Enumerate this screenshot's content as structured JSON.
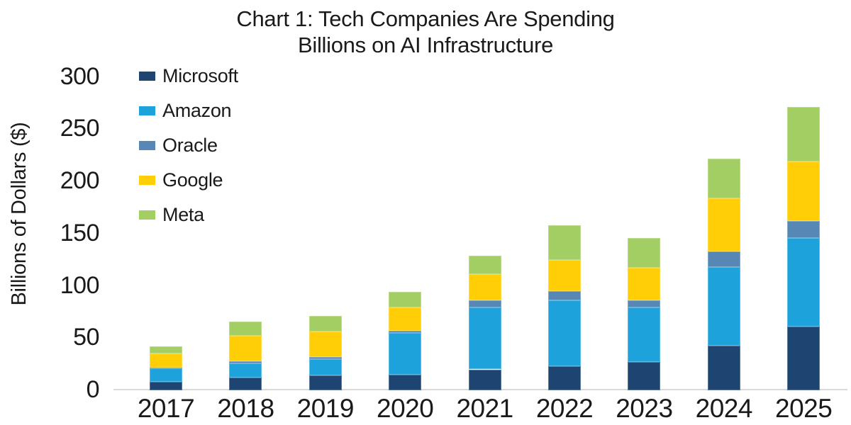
{
  "page": {
    "background": "#ffffff",
    "text_color": "#1a1a1a"
  },
  "chart_data": {
    "type": "bar",
    "stacked": true,
    "title_line1": "Chart 1: Tech Companies Are Spending",
    "title_line2": "Billions on AI Infrastructure",
    "ylabel": "Billions of Dollars ($)",
    "xlabel": "",
    "ylim": [
      0,
      300
    ],
    "yticks": [
      0,
      50,
      100,
      150,
      200,
      250,
      300
    ],
    "grid": false,
    "legend_position": "top-left",
    "axis_color": "#d9d9d9",
    "categories": [
      "2017",
      "2018",
      "2019",
      "2020",
      "2021",
      "2022",
      "2023",
      "2024",
      "2025"
    ],
    "series": [
      {
        "name": "Microsoft",
        "color": "#1e4571",
        "values": [
          8,
          12,
          14,
          15,
          20,
          23,
          27,
          43,
          61
        ]
      },
      {
        "name": "Amazon",
        "color": "#1ea2dc",
        "values": [
          13,
          14,
          16,
          40,
          59,
          63,
          52,
          75,
          85
        ]
      },
      {
        "name": "Oracle",
        "color": "#5788b5",
        "values": [
          1,
          2,
          2,
          2,
          7,
          9,
          7,
          15,
          16
        ]
      },
      {
        "name": "Google",
        "color": "#ffce07",
        "values": [
          13,
          24,
          24,
          22,
          25,
          30,
          31,
          51,
          57
        ]
      },
      {
        "name": "Meta",
        "color": "#a3ce63",
        "values": [
          7,
          14,
          15,
          15,
          18,
          33,
          29,
          38,
          52
        ]
      }
    ]
  }
}
